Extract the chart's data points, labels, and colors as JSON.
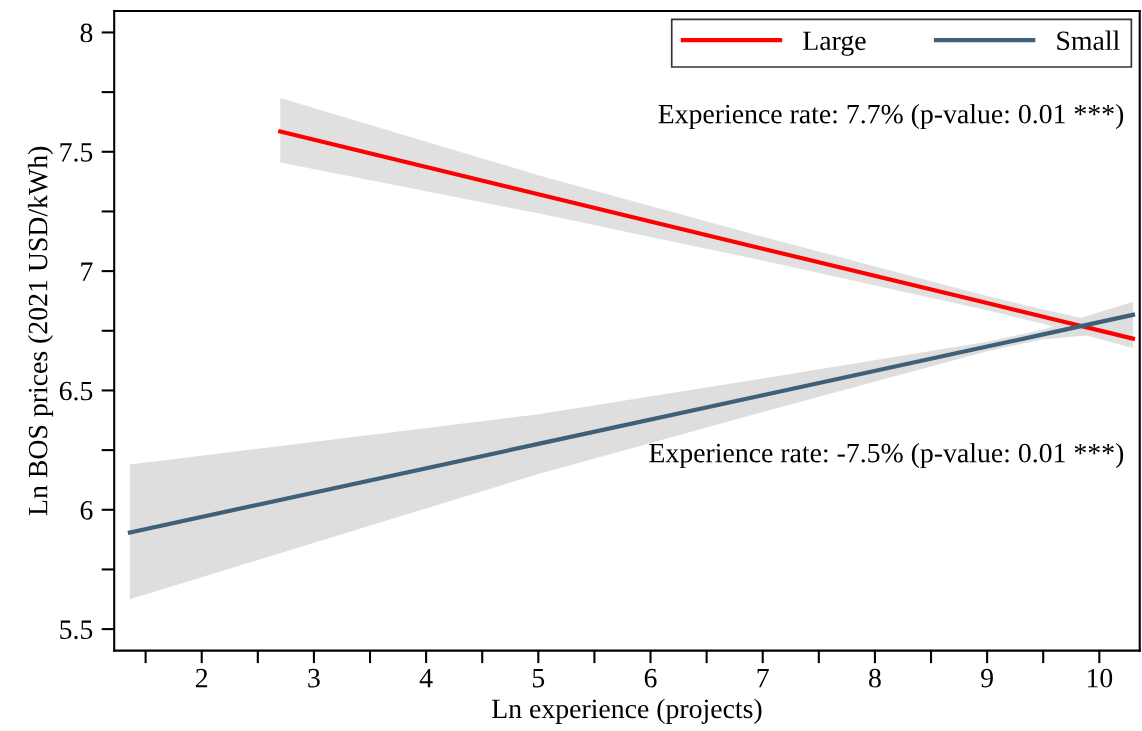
{
  "chart_data": {
    "type": "line",
    "xlabel": "Ln experience (projects)",
    "ylabel": "Ln BOS prices (2021 USD/kWh)",
    "series": [
      {
        "name": "Large",
        "color": "#ff0000",
        "x": [
          2.7,
          5,
          7,
          9,
          9.5,
          10.3
        ],
        "values": [
          7.585,
          7.322,
          7.094,
          6.866,
          6.809,
          6.717
        ],
        "lower": [
          7.455,
          7.242,
          7.044,
          6.836,
          6.779,
          6.677
        ],
        "upper": [
          7.725,
          7.402,
          7.144,
          6.896,
          6.839,
          6.757
        ]
      },
      {
        "name": "Small",
        "color": "#3f6079",
        "x": [
          1.36,
          5,
          7,
          9,
          9.5,
          10.3
        ],
        "values": [
          5.905,
          6.276,
          6.48,
          6.684,
          6.735,
          6.817
        ],
        "lower": [
          5.625,
          6.15,
          6.41,
          6.664,
          6.715,
          6.747
        ],
        "upper": [
          6.19,
          6.4,
          6.55,
          6.704,
          6.755,
          6.872
        ]
      }
    ],
    "xlim": [
      1.22,
      10.36
    ],
    "ylim": [
      5.41,
      8.09
    ],
    "xticks": [
      {
        "value": 1.5,
        "label": null
      },
      2,
      {
        "value": 2.5,
        "label": null
      },
      3,
      {
        "value": 3.5,
        "label": null
      },
      4,
      {
        "value": 4.5,
        "label": null
      },
      5,
      {
        "value": 5.5,
        "label": null
      },
      6,
      {
        "value": 6.5,
        "label": null
      },
      7,
      {
        "value": 7.5,
        "label": null
      },
      8,
      {
        "value": 8.5,
        "label": null
      },
      9,
      {
        "value": 9.5,
        "label": null
      },
      10
    ],
    "yticks": [
      5.5,
      {
        "value": 5.75,
        "label": null
      },
      6,
      {
        "value": 6.25,
        "label": null
      },
      6.5,
      {
        "value": 6.75,
        "label": null
      },
      7,
      {
        "value": 7.25,
        "label": null
      },
      7.5,
      {
        "value": 7.75,
        "label": null
      },
      8
    ],
    "annotations": [
      "Experience rate: 7.7% (p-value: 0.01 ***)",
      "Experience rate: -7.5% (p-value: 0.01 ***)"
    ],
    "legend": "top right",
    "grid": false
  }
}
